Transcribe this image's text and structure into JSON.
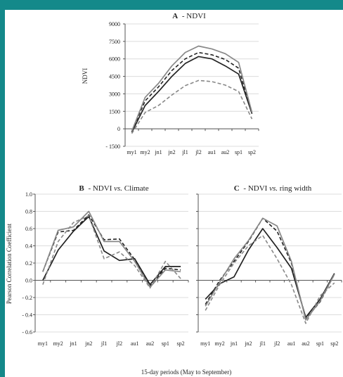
{
  "colors": {
    "frame": "#14898a",
    "series": [
      "#222222",
      "#222222",
      "#888888",
      "#888888"
    ],
    "gridline": "#dcdcdc",
    "axis": "#555555"
  },
  "shared": {
    "ylabel_bc": "Pearson Correlation Coefficient",
    "xlabel": "15-day periods (May to September)"
  },
  "chart_data": [
    {
      "type": "line",
      "title_letter": "A",
      "title_text": "- NDVI",
      "ylabel": "NDVI",
      "ylim": [
        -1500,
        9000
      ],
      "yticks": [
        -1500,
        0,
        1500,
        3000,
        4500,
        6000,
        7500,
        9000
      ],
      "ytick_labels": [
        "- 1500",
        "0",
        "1500",
        "3000",
        "4500",
        "6000",
        "7500",
        "9000"
      ],
      "categories": [
        "my1",
        "my2",
        "jn1",
        "jn2",
        "jl1",
        "jl2",
        "au1",
        "au2",
        "sp1",
        "sp2"
      ],
      "grid": true,
      "series": [
        {
          "style": "solid-black",
          "values": [
            -300,
            2000,
            3200,
            4500,
            5600,
            6200,
            6000,
            5400,
            4700,
            1300
          ]
        },
        {
          "style": "dashed-black",
          "values": [
            -200,
            2400,
            3600,
            5000,
            6000,
            6550,
            6350,
            5950,
            5200,
            1300
          ]
        },
        {
          "style": "solid-gray",
          "values": [
            -200,
            2700,
            3900,
            5400,
            6550,
            7100,
            6850,
            6450,
            5700,
            1400
          ]
        },
        {
          "style": "dashed-gray",
          "values": [
            -400,
            1400,
            2000,
            2900,
            3700,
            4150,
            4050,
            3750,
            3200,
            850
          ]
        }
      ]
    },
    {
      "type": "line",
      "title_letter": "B",
      "title_text": "- NDVI vs. Climate",
      "title_parts": [
        "- NDVI ",
        "vs.",
        " Climate"
      ],
      "ylim": [
        -0.6,
        1.0
      ],
      "yticks": [
        -0.6,
        -0.4,
        -0.2,
        0.0,
        0.2,
        0.4,
        0.6,
        0.8,
        1.0
      ],
      "ytick_labels": [
        "- 0.6",
        "- 0.4",
        "- 0.2",
        "0.0",
        "0.2",
        "0.4",
        "0.6",
        "0.8",
        "1.0"
      ],
      "categories": [
        "my1",
        "my2",
        "jn1",
        "jn2",
        "jl1",
        "jl2",
        "au1",
        "au2",
        "sp1",
        "sp2"
      ],
      "grid": true,
      "series": [
        {
          "style": "solid-black",
          "values": [
            0.0,
            0.35,
            0.57,
            0.74,
            0.34,
            0.23,
            0.25,
            -0.05,
            0.16,
            0.16
          ]
        },
        {
          "style": "dashed-black",
          "values": [
            0.1,
            0.56,
            0.58,
            0.76,
            0.47,
            0.48,
            0.24,
            -0.07,
            0.14,
            0.12
          ]
        },
        {
          "style": "solid-gray",
          "values": [
            0.1,
            0.58,
            0.62,
            0.8,
            0.45,
            0.45,
            0.22,
            -0.08,
            0.12,
            0.1
          ]
        },
        {
          "style": "dashed-gray",
          "values": [
            -0.05,
            0.45,
            0.67,
            0.75,
            0.25,
            0.33,
            0.17,
            -0.09,
            0.22,
            0.02
          ]
        }
      ]
    },
    {
      "type": "line",
      "title_letter": "C",
      "title_text": "- NDVI vs. ring width",
      "title_parts": [
        "- NDVI ",
        "vs.",
        " ring width"
      ],
      "ylim": [
        -0.6,
        1.0
      ],
      "yticks": [
        -0.6,
        -0.4,
        -0.2,
        0.0,
        0.2,
        0.4,
        0.6,
        0.8,
        1.0
      ],
      "categories": [
        "my1",
        "my2",
        "jn1",
        "jn2",
        "jl1",
        "jl2",
        "au1",
        "au2",
        "sp1",
        "sp2"
      ],
      "grid": true,
      "series": [
        {
          "style": "solid-black",
          "values": [
            -0.22,
            -0.04,
            0.04,
            0.35,
            0.6,
            0.38,
            0.14,
            -0.43,
            -0.22,
            0.08
          ]
        },
        {
          "style": "dashed-black",
          "values": [
            -0.28,
            0.0,
            0.22,
            0.45,
            0.72,
            0.57,
            0.2,
            -0.45,
            -0.25,
            0.07
          ]
        },
        {
          "style": "solid-gray",
          "values": [
            -0.3,
            -0.02,
            0.25,
            0.46,
            0.72,
            0.63,
            0.22,
            -0.46,
            -0.24,
            0.07
          ]
        },
        {
          "style": "dashed-gray",
          "values": [
            -0.35,
            -0.05,
            0.2,
            0.4,
            0.52,
            0.25,
            -0.05,
            -0.5,
            -0.18,
            -0.03
          ]
        }
      ]
    }
  ]
}
